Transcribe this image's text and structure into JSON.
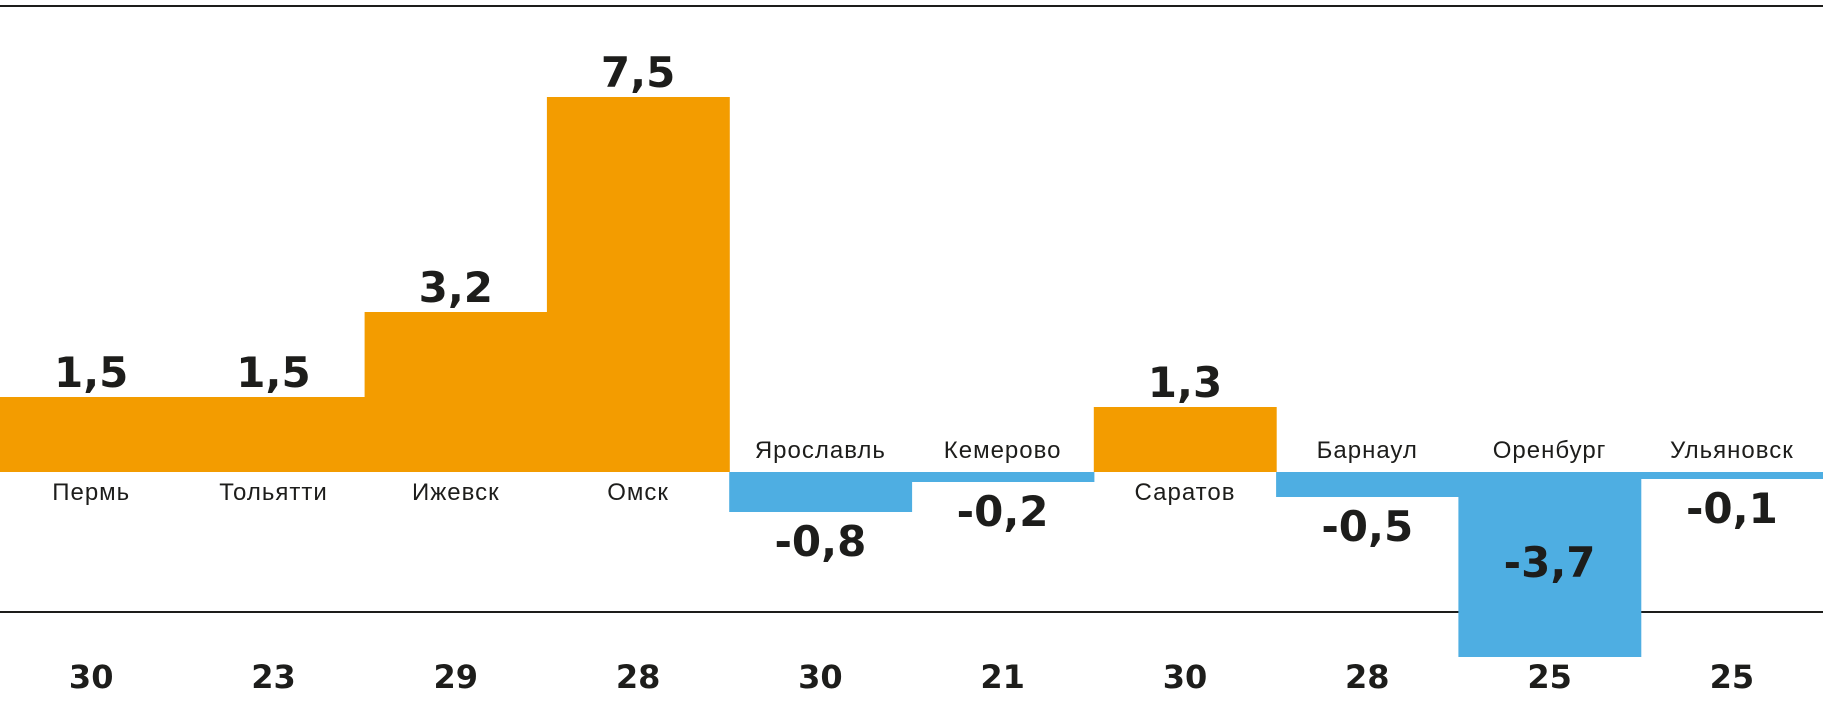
{
  "colors": {
    "positive": "#f39c00",
    "negative": "#4eaee2",
    "text": "#1d1d1b",
    "rule": "#1d1d1b"
  },
  "chart_data": {
    "type": "bar",
    "categories": [
      "Пермь",
      "Тольятти",
      "Ижевск",
      "Омск",
      "Ярославль",
      "Кемерово",
      "Саратов",
      "Барнаул",
      "Оренбург",
      "Ульяновск"
    ],
    "values": [
      1.5,
      1.5,
      3.2,
      7.5,
      -0.8,
      -0.2,
      1.3,
      -0.5,
      -3.7,
      -0.1
    ],
    "value_labels": [
      "1,5",
      "1,5",
      "3,2",
      "7,5",
      "-0,8",
      "-0,2",
      "1,3",
      "-0,5",
      "-3,7",
      "-0,1"
    ],
    "bottom_numbers": [
      "30",
      "23",
      "29",
      "28",
      "30",
      "21",
      "30",
      "28",
      "25",
      "25"
    ],
    "title": "",
    "xlabel": "",
    "ylabel": "",
    "ylim": [
      -3.7,
      7.5
    ],
    "grid": false,
    "legend": "none"
  }
}
